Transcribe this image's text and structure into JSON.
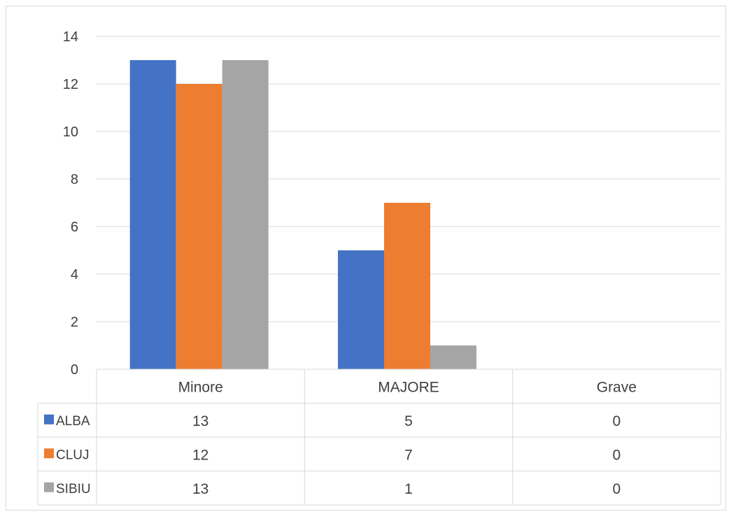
{
  "chart_data": {
    "type": "bar",
    "categories": [
      "Minore",
      "MAJORE",
      "Grave"
    ],
    "series": [
      {
        "name": "ALBA",
        "values": [
          13,
          5,
          0
        ],
        "color": "#4472C4"
      },
      {
        "name": "CLUJ",
        "values": [
          12,
          7,
          0
        ],
        "color": "#ED7D31"
      },
      {
        "name": "SIBIU",
        "values": [
          13,
          1,
          0
        ],
        "color": "#A5A5A5"
      }
    ],
    "ylim": [
      0,
      14
    ],
    "yticks": [
      0,
      2,
      4,
      6,
      8,
      10,
      12,
      14
    ],
    "grid": true,
    "legend": "data-table",
    "title": "",
    "xlabel": "",
    "ylabel": ""
  }
}
